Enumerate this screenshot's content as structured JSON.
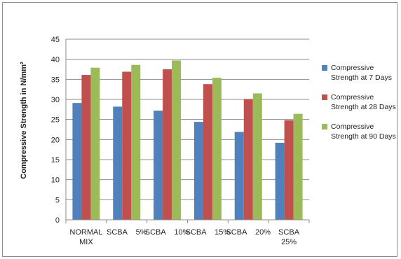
{
  "chart_data": {
    "type": "bar",
    "title": "",
    "xlabel": "",
    "ylabel": "Compressive Strength in N/mm²",
    "ylim": [
      0,
      45
    ],
    "yticks": [
      0,
      5,
      10,
      15,
      20,
      25,
      30,
      35,
      40,
      45
    ],
    "grid": true,
    "legend_position": "right",
    "categories": [
      "NORMAL MIX",
      "SCBA 5%",
      "SCBA 10%",
      "SCBA 15%",
      "SCBA 20%",
      "SCBA 25%"
    ],
    "category_label_lines": [
      [
        "NORMAL",
        "MIX"
      ],
      [
        "SCBA    5%"
      ],
      [
        "SCBA    10%"
      ],
      [
        "SCBA    15%"
      ],
      [
        "SCBA    20%"
      ],
      [
        "SCBA",
        "25%"
      ]
    ],
    "series": [
      {
        "name": "Compressive Strength at 7 Days",
        "legend_lines": [
          "Compressive",
          "Strength at 7 Days"
        ],
        "color": "#4f81bd",
        "values": [
          29.1,
          28.2,
          27.2,
          24.4,
          21.9,
          19.2
        ]
      },
      {
        "name": "Compressive Strength at 28 Days",
        "legend_lines": [
          "Compressive",
          "Strength at 28 Days"
        ],
        "color": "#c0504d",
        "values": [
          36.1,
          36.9,
          37.5,
          33.8,
          30.1,
          24.8
        ]
      },
      {
        "name": "Compressive Strength at 90 Days",
        "legend_lines": [
          "Compressive",
          "Strength at 90 Days"
        ],
        "color": "#9bbb59",
        "values": [
          37.9,
          38.6,
          39.7,
          35.4,
          31.5,
          26.4
        ]
      }
    ]
  }
}
